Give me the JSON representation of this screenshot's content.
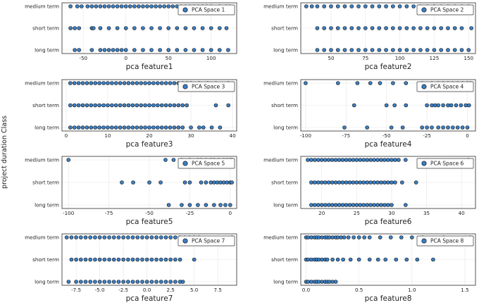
{
  "figure": {
    "ylabel": "project duration Class",
    "marker_fill": "#3b7fc4",
    "marker_edge": "#111111"
  },
  "chart_data": [
    {
      "type": "scatter",
      "legend": "PCA Space 1",
      "xlabel": "pca feature1",
      "categories": [
        "long term",
        "short term",
        "medium term"
      ],
      "xlim": [
        -75,
        130
      ],
      "xticks": [
        -50,
        0,
        50,
        100
      ],
      "series": [
        {
          "name": "PCA Space 1",
          "points": {
            "medium term": [
              -65,
              -57,
              -52,
              -45,
              -40,
              -35,
              -30,
              -25,
              -20,
              -15,
              -10,
              -5,
              0,
              5,
              10,
              15,
              20,
              25,
              30,
              35,
              40,
              45,
              50,
              55,
              60,
              65,
              70,
              75,
              80,
              85,
              90,
              95,
              100,
              110,
              118,
              122
            ],
            "short term": [
              -65,
              -60,
              -55,
              -40,
              -38,
              -30,
              -20,
              -10,
              0,
              10,
              20,
              30,
              40,
              50,
              60,
              70,
              80,
              90,
              100,
              110,
              118
            ],
            "long term": [
              -60,
              -55,
              -40,
              -30,
              -25,
              -20,
              -15,
              -10,
              -5,
              0,
              10,
              20,
              30,
              40,
              50,
              60,
              70,
              80,
              90,
              100,
              110,
              120
            ]
          }
        }
      ]
    },
    {
      "type": "scatter",
      "legend": "PCA Space 2",
      "xlabel": "pca feature2",
      "categories": [
        "long term",
        "short term",
        "medium term"
      ],
      "xlim": [
        28,
        155
      ],
      "xticks": [
        50,
        75,
        100,
        125,
        150
      ],
      "series": [
        {
          "name": "PCA Space 2",
          "points": {
            "medium term": [
              32,
              36,
              40,
              45,
              50,
              55,
              60,
              65,
              70,
              75,
              80,
              85,
              90,
              95,
              100,
              105,
              110,
              115,
              120,
              125,
              130,
              135,
              140,
              145,
              150
            ],
            "short term": [
              40,
              45,
              50,
              55,
              60,
              65,
              70,
              75,
              80,
              85,
              90,
              95,
              100,
              105,
              110,
              115,
              120,
              125,
              130,
              135,
              140,
              145,
              152
            ],
            "long term": [
              40,
              45,
              50,
              55,
              60,
              65,
              70,
              75,
              80,
              85,
              90,
              95,
              100,
              105,
              110,
              115,
              120,
              125,
              130,
              135,
              140,
              145,
              150
            ]
          }
        }
      ]
    },
    {
      "type": "scatter",
      "legend": "PCA Space 3",
      "xlabel": "pca feature3",
      "categories": [
        "long term",
        "short term",
        "medium term"
      ],
      "xlim": [
        -1,
        41
      ],
      "xticks": [
        0,
        10,
        20,
        30,
        40
      ],
      "series": [
        {
          "name": "PCA Space 3",
          "points": {
            "medium term": [
              1,
              2,
              3,
              4,
              5,
              6,
              7,
              8,
              9,
              10,
              11,
              12,
              13,
              14,
              15,
              16,
              17,
              18,
              19,
              20,
              21,
              22,
              23,
              24,
              25,
              26,
              27,
              28,
              29,
              30,
              32,
              34,
              36,
              39
            ],
            "short term": [
              1,
              2,
              3,
              4,
              5,
              6,
              7,
              8,
              9,
              10,
              11,
              12,
              13,
              14,
              15,
              16,
              17,
              18,
              19,
              20,
              21,
              22,
              23,
              24,
              25,
              26,
              27,
              28,
              29,
              36,
              39
            ],
            "long term": [
              1,
              2,
              3,
              4,
              5,
              6,
              7,
              8,
              9,
              10,
              11,
              12,
              13,
              14,
              15,
              16,
              17,
              18,
              19,
              20,
              21,
              22,
              23,
              24,
              25,
              26,
              27,
              28,
              30,
              32,
              33,
              35,
              37
            ]
          }
        }
      ]
    },
    {
      "type": "scatter",
      "legend": "PCA Space 4",
      "xlabel": "pca feature4",
      "categories": [
        "long term",
        "short term",
        "medium term"
      ],
      "xlim": [
        -103,
        5
      ],
      "xticks": [
        -100,
        -75,
        -50,
        -25,
        0
      ],
      "series": [
        {
          "name": "PCA Space 4",
          "points": {
            "medium term": [
              -100,
              -80,
              -68,
              -60,
              -54,
              -46,
              -38,
              -28,
              -22,
              -18,
              -15,
              -12,
              -9,
              -6,
              -3,
              0,
              2
            ],
            "short term": [
              -70,
              -50,
              -45,
              -38,
              -25,
              -22,
              -20,
              -18,
              -15,
              -12,
              -10,
              -7,
              -4,
              -1,
              1
            ],
            "long term": [
              -76,
              -62,
              -47,
              -40,
              -28,
              -25,
              -22,
              -18,
              -15,
              -12,
              -9,
              -6,
              -3,
              0
            ]
          }
        }
      ]
    },
    {
      "type": "scatter",
      "legend": "PCA Space 5",
      "xlabel": "pca feature5",
      "categories": [
        "long term",
        "short term",
        "medium term"
      ],
      "xlim": [
        -104,
        4
      ],
      "xticks": [
        -100,
        -75,
        -50,
        -25,
        0
      ],
      "series": [
        {
          "name": "PCA Space 5",
          "points": {
            "medium term": [
              -100,
              -40,
              -35,
              -30,
              -25,
              -20,
              -18,
              -15,
              -12,
              -10,
              -7,
              -4,
              -2,
              0,
              1
            ],
            "short term": [
              -67,
              -60,
              -50,
              -43,
              -28,
              -25,
              -18,
              -15,
              -12,
              -10,
              -8,
              -6,
              -4,
              -2,
              0,
              1
            ],
            "long term": [
              -38,
              -30,
              -25,
              -20,
              -15,
              -10,
              -6,
              -3,
              0
            ]
          }
        }
      ]
    },
    {
      "type": "scatter",
      "legend": "PCA Space 6",
      "xlabel": "pca feature6",
      "categories": [
        "long term",
        "short term",
        "medium term"
      ],
      "xlim": [
        17,
        42
      ],
      "xticks": [
        20,
        25,
        30,
        35,
        40
      ],
      "series": [
        {
          "name": "PCA Space 6",
          "points": {
            "medium term": [
              18,
              18.5,
              19,
              19.5,
              20,
              20.5,
              21,
              21.5,
              22,
              22.5,
              23,
              23.5,
              24,
              24.5,
              25,
              25.5,
              26,
              26.5,
              27,
              27.5,
              28,
              28.5,
              29,
              29.5,
              30,
              30.5,
              31,
              32,
              41
            ],
            "short term": [
              18.5,
              19,
              19.5,
              20,
              20.5,
              21,
              21.5,
              22,
              22.5,
              23,
              23.5,
              24,
              24.5,
              25,
              25.5,
              26,
              26.5,
              27,
              27.5,
              28,
              28.5,
              29,
              29.5,
              30,
              30.5,
              31.5,
              33.5
            ],
            "long term": [
              18.5,
              19,
              19.5,
              20,
              20.5,
              21,
              21.5,
              22,
              22.5,
              23,
              23.5,
              24,
              24.5,
              25,
              25.5,
              26,
              26.5,
              27,
              27.5,
              28,
              28.5,
              29,
              29.5,
              30,
              32
            ]
          }
        }
      ]
    },
    {
      "type": "scatter",
      "legend": "PCA Space 7",
      "xlabel": "pca feature7",
      "categories": [
        "long term",
        "short term",
        "medium term"
      ],
      "xlim": [
        -9,
        9.5
      ],
      "xticks": [
        -7.5,
        -5.0,
        -2.5,
        0.0,
        2.5,
        5.0,
        7.5
      ],
      "series": [
        {
          "name": "PCA Space 7",
          "points": {
            "medium term": [
              -8.5,
              -8,
              -7.5,
              -7,
              -6.5,
              -6,
              -5.5,
              -5,
              -4.5,
              -4,
              -3.5,
              -3,
              -2.5,
              -2,
              -1.5,
              -1,
              -0.5,
              0,
              0.5,
              1,
              1.5,
              2,
              2.5,
              3,
              3.5,
              4,
              4.5,
              5,
              5.5,
              9
            ],
            "short term": [
              -8,
              -7.5,
              -7,
              -6.5,
              -6,
              -5.5,
              -5,
              -4.5,
              -4,
              -3.5,
              -3,
              -2.5,
              -2,
              -1.5,
              -1,
              -0.5,
              0,
              0.5,
              1,
              1.5,
              2,
              2.5,
              3,
              3.5,
              5
            ],
            "long term": [
              -8.3,
              -7.5,
              -7,
              -6.5,
              -6,
              -5.5,
              -5,
              -4.5,
              -4,
              -3.5,
              -3,
              -2.5,
              -2,
              -1.5,
              -1,
              -0.5,
              0,
              0.5,
              1,
              1.5,
              2,
              2.5,
              3,
              3.5,
              3.8
            ]
          }
        }
      ]
    },
    {
      "type": "scatter",
      "legend": "PCA Space 8",
      "xlabel": "pca feature8",
      "categories": [
        "long term",
        "short term",
        "medium term"
      ],
      "xlim": [
        -0.05,
        1.6
      ],
      "xticks": [
        0.0,
        0.5,
        1.0,
        1.5
      ],
      "series": [
        {
          "name": "PCA Space 8",
          "points": {
            "medium term": [
              0,
              0.02,
              0.05,
              0.08,
              0.1,
              0.12,
              0.15,
              0.18,
              0.2,
              0.22,
              0.25,
              0.28,
              0.3,
              0.33,
              0.36,
              0.4,
              0.45,
              0.5,
              0.55,
              0.6,
              0.7,
              0.8,
              0.9,
              1.0,
              1.1,
              1.3,
              1.55
            ],
            "short term": [
              0,
              0.02,
              0.05,
              0.08,
              0.1,
              0.12,
              0.15,
              0.18,
              0.2,
              0.25,
              0.3,
              0.35,
              0.42,
              0.5,
              0.6,
              0.68,
              0.75,
              0.85,
              0.95,
              1.05,
              1.2
            ],
            "long term": [
              0,
              0.02,
              0.05,
              0.08,
              0.1,
              0.12,
              0.15,
              0.18,
              0.2,
              0.22,
              0.25,
              0.28
            ]
          }
        }
      ]
    }
  ]
}
